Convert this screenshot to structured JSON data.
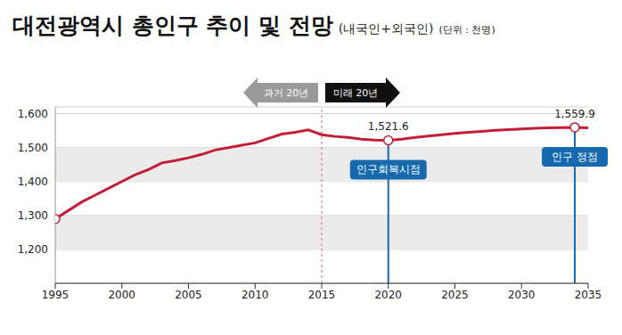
{
  "chart_data": {
    "type": "line",
    "title": "대전광역시 총인구 추이 및 전망",
    "subtitle": "(내국인+외국인)",
    "y_label": "(단위 : 천명)",
    "x": [
      1995,
      1996,
      1997,
      1998,
      1999,
      2000,
      2001,
      2002,
      2003,
      2004,
      2005,
      2006,
      2007,
      2008,
      2009,
      2010,
      2011,
      2012,
      2013,
      2014,
      2015,
      2016,
      2017,
      2018,
      2019,
      2020,
      2021,
      2022,
      2023,
      2024,
      2025,
      2026,
      2027,
      2028,
      2029,
      2030,
      2031,
      2032,
      2033,
      2034,
      2035
    ],
    "values": [
      1290,
      1315,
      1340,
      1360,
      1380,
      1400,
      1420,
      1435,
      1455,
      1462,
      1470,
      1480,
      1493,
      1500,
      1507,
      1514,
      1527,
      1540,
      1545,
      1552,
      1538,
      1533,
      1530,
      1525,
      1522,
      1521.6,
      1525,
      1530,
      1534,
      1538,
      1542,
      1545,
      1548,
      1551,
      1553,
      1555,
      1557,
      1558,
      1559,
      1559.9,
      1558
    ],
    "color": "#c41e35",
    "xlim": [
      1995,
      2035
    ],
    "xticks": [
      1995,
      2000,
      2005,
      2010,
      2015,
      2020,
      2025,
      2030,
      2035
    ],
    "ylim": [
      1100,
      1620
    ],
    "yticks": [
      {
        "value": 1200,
        "label": "1,200"
      },
      {
        "value": 1300,
        "label": "1,300"
      },
      {
        "value": 1400,
        "label": "1,400"
      },
      {
        "value": 1500,
        "label": "1,500"
      },
      {
        "value": 1600,
        "label": "1,600"
      }
    ],
    "grid": true,
    "annotations": [
      {
        "type": "divider",
        "x": 2015,
        "labels": [
          "과거 20년",
          "미래 20년"
        ]
      },
      {
        "type": "point",
        "x": 2020,
        "y": 1521.6,
        "value_label": "1,521.6",
        "label": "인구회복시점"
      },
      {
        "type": "point",
        "x": 2034,
        "y": 1559.9,
        "value_label": "1,559.9",
        "label": "인구 정점"
      }
    ]
  }
}
